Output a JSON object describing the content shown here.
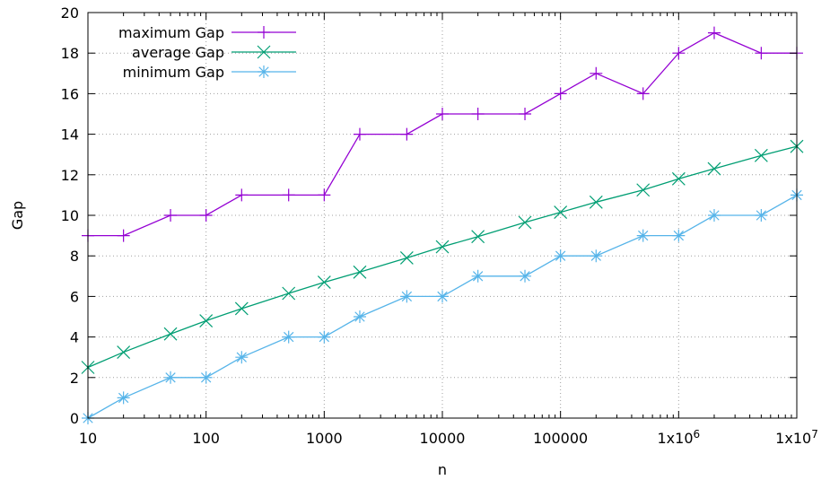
{
  "chart_data": {
    "type": "line",
    "xlabel": "n",
    "ylabel": "Gap",
    "xscale": "log",
    "xlim": [
      10,
      10000000
    ],
    "ylim": [
      0,
      20
    ],
    "grid": true,
    "legend_position": "top-left",
    "x": [
      10,
      20,
      50,
      100,
      200,
      500,
      1000,
      2000,
      5000,
      10000,
      20000,
      50000,
      100000,
      200000,
      500000,
      1000000,
      2000000,
      5000000,
      10000000
    ],
    "x_tick_labels": [
      "10",
      "100",
      "1000",
      "10000",
      "100000",
      "1x10^6",
      "1x10^7"
    ],
    "y_ticks": [
      0,
      2,
      4,
      6,
      8,
      10,
      12,
      14,
      16,
      18,
      20
    ],
    "series": [
      {
        "name": "maximum Gap",
        "color": "#9400d3",
        "marker": "plus",
        "values": [
          9,
          9,
          10,
          10,
          11,
          11,
          11,
          14,
          14,
          15,
          15,
          15,
          16,
          17,
          16,
          18,
          19,
          18,
          18
        ]
      },
      {
        "name": "average Gap",
        "color": "#009e73",
        "marker": "cross",
        "values": [
          2.5,
          3.25,
          4.15,
          4.8,
          5.4,
          6.15,
          6.7,
          7.2,
          7.9,
          8.45,
          8.95,
          9.65,
          10.15,
          10.65,
          11.25,
          11.8,
          12.3,
          12.95,
          13.4
        ]
      },
      {
        "name": "minimum Gap",
        "color": "#56b4e9",
        "marker": "star",
        "values": [
          0,
          1,
          2,
          2,
          3,
          4,
          4,
          5,
          6,
          6,
          7,
          7,
          8,
          8,
          9,
          9,
          10,
          10,
          11
        ]
      }
    ]
  }
}
